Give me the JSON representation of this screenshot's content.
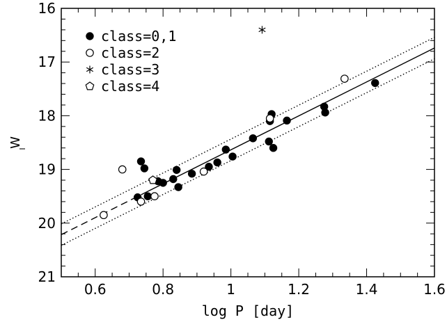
{
  "chart_data": {
    "type": "scatter",
    "xlabel": "log P [day]",
    "ylabel": "W",
    "ylabel_subscript": "I",
    "xlim": [
      0.5,
      1.6
    ],
    "ylim": [
      21,
      16
    ],
    "y_inverted": true,
    "x_ticks": [
      0.6,
      0.8,
      1.0,
      1.2,
      1.4,
      1.6
    ],
    "x_tick_labels": [
      "0.6",
      "0.8",
      "1",
      "1.2",
      "1.4",
      "1.6"
    ],
    "y_ticks": [
      16,
      17,
      18,
      19,
      20,
      21
    ],
    "y_tick_labels": [
      "16",
      "17",
      "18",
      "19",
      "20",
      "21"
    ],
    "grid": false,
    "legend_position": "top-left",
    "series": [
      {
        "name": "class=0,1",
        "marker": "filled-circle",
        "points": [
          [
            0.725,
            19.52
          ],
          [
            0.735,
            18.85
          ],
          [
            0.745,
            18.98
          ],
          [
            0.755,
            19.5
          ],
          [
            0.785,
            19.22
          ],
          [
            0.8,
            19.25
          ],
          [
            0.83,
            19.18
          ],
          [
            0.84,
            19.01
          ],
          [
            0.845,
            19.33
          ],
          [
            0.885,
            19.08
          ],
          [
            0.935,
            18.95
          ],
          [
            0.96,
            18.87
          ],
          [
            0.985,
            18.63
          ],
          [
            1.005,
            18.76
          ],
          [
            1.065,
            18.42
          ],
          [
            1.112,
            18.48
          ],
          [
            1.115,
            18.1
          ],
          [
            1.12,
            17.97
          ],
          [
            1.125,
            18.6
          ],
          [
            1.165,
            18.09
          ],
          [
            1.275,
            17.83
          ],
          [
            1.278,
            17.94
          ],
          [
            1.425,
            17.39
          ]
        ]
      },
      {
        "name": "class=2",
        "marker": "open-circle",
        "points": [
          [
            0.625,
            19.85
          ],
          [
            0.68,
            19.0
          ],
          [
            0.735,
            19.6
          ],
          [
            0.775,
            19.5
          ],
          [
            0.92,
            19.04
          ],
          [
            1.115,
            18.05
          ],
          [
            1.335,
            17.31
          ]
        ]
      },
      {
        "name": "class=3",
        "marker": "asterisk",
        "points": [
          [
            1.092,
            16.4
          ]
        ]
      },
      {
        "name": "class=4",
        "marker": "open-pentagon",
        "points": [
          [
            0.77,
            19.2
          ]
        ]
      }
    ],
    "lines": [
      {
        "style": "dashed",
        "x": [
          0.5,
          0.75
        ],
        "y": [
          20.215,
          19.425
        ]
      },
      {
        "style": "solid",
        "x": [
          0.75,
          1.6
        ],
        "y": [
          19.425,
          16.739
        ]
      },
      {
        "style": "dotted",
        "x": [
          0.5,
          1.6
        ],
        "y": [
          20.015,
          16.539
        ]
      },
      {
        "style": "dotted",
        "x": [
          0.5,
          1.6
        ],
        "y": [
          20.415,
          16.939
        ]
      }
    ]
  }
}
